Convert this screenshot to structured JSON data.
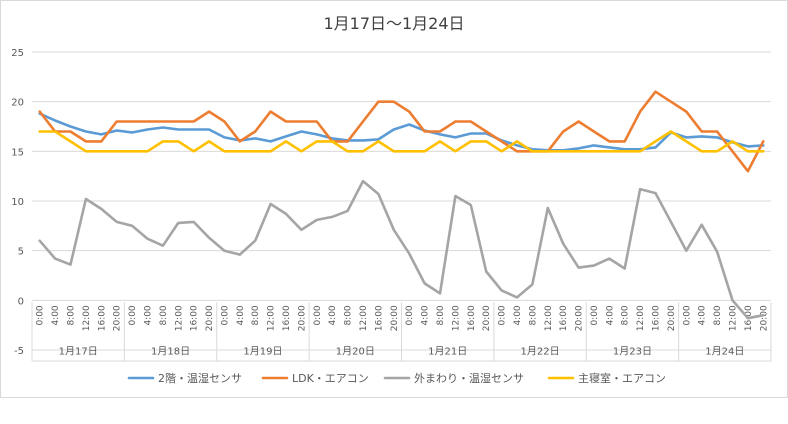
{
  "chart_data": {
    "type": "line",
    "title": "1月17日～1月24日",
    "xlabel": "",
    "ylabel": "",
    "ylim": [
      -5,
      25
    ],
    "yticks": [
      -5,
      0,
      5,
      10,
      15,
      20,
      25
    ],
    "grid": true,
    "legend": "bottom",
    "x_time_labels": [
      "0:00",
      "4:00",
      "8:00",
      "12:00",
      "16:00",
      "20:00"
    ],
    "days": [
      "1月17日",
      "1月18日",
      "1月19日",
      "1月20日",
      "1月21日",
      "1月22日",
      "1月23日",
      "1月24日"
    ],
    "series": [
      {
        "name": "2階・温湿センサ",
        "color": "#5b9bd5",
        "values": [
          18.8,
          18.1,
          17.5,
          17.0,
          16.7,
          17.1,
          16.9,
          17.2,
          17.4,
          17.2,
          17.2,
          17.2,
          16.4,
          16.1,
          16.3,
          16.0,
          16.5,
          17.0,
          16.7,
          16.3,
          16.1,
          16.1,
          16.2,
          17.2,
          17.7,
          17.1,
          16.7,
          16.4,
          16.8,
          16.8,
          16.1,
          15.6,
          15.2,
          15.1,
          15.1,
          15.3,
          15.6,
          15.4,
          15.2,
          15.2,
          15.4,
          16.9,
          16.4,
          16.5,
          16.4,
          15.9,
          15.5,
          15.6
        ]
      },
      {
        "name": "LDK・エアコン",
        "color": "#ed7d31",
        "values": [
          19.0,
          17.0,
          17.0,
          16.0,
          16.0,
          18.0,
          18.0,
          18.0,
          18.0,
          18.0,
          18.0,
          19.0,
          18.0,
          16.0,
          17.0,
          19.0,
          18.0,
          18.0,
          18.0,
          16.0,
          16.0,
          18.0,
          20.0,
          20.0,
          19.0,
          17.0,
          17.0,
          18.0,
          18.0,
          17.0,
          16.0,
          15.0,
          15.0,
          15.0,
          17.0,
          18.0,
          17.0,
          16.0,
          16.0,
          19.0,
          21.0,
          20.0,
          19.0,
          17.0,
          17.0,
          15.0,
          13.0,
          16.0
        ]
      },
      {
        "name": "外まわり・温湿センサ",
        "color": "#a5a5a5",
        "values": [
          6.0,
          4.2,
          3.6,
          10.2,
          9.2,
          7.9,
          7.5,
          6.2,
          5.5,
          7.8,
          7.9,
          6.3,
          5.0,
          4.6,
          6.0,
          9.7,
          8.7,
          7.1,
          8.1,
          8.4,
          9.0,
          12.0,
          10.7,
          7.1,
          4.7,
          1.7,
          0.7,
          10.5,
          9.6,
          2.9,
          1.0,
          0.3,
          1.6,
          9.3,
          5.7,
          3.3,
          3.5,
          4.2,
          3.2,
          11.2,
          10.8,
          7.9,
          5.0,
          7.6,
          4.9,
          0.0,
          -1.8,
          -1.5
        ]
      },
      {
        "name": "主寝室・エアコン",
        "color": "#ffc000",
        "values": [
          17.0,
          17.0,
          16.0,
          15.0,
          15.0,
          15.0,
          15.0,
          15.0,
          16.0,
          16.0,
          15.0,
          16.0,
          15.0,
          15.0,
          15.0,
          15.0,
          16.0,
          15.0,
          16.0,
          16.0,
          15.0,
          15.0,
          16.0,
          15.0,
          15.0,
          15.0,
          16.0,
          15.0,
          16.0,
          16.0,
          15.0,
          16.0,
          15.0,
          15.0,
          15.0,
          15.0,
          15.0,
          15.0,
          15.0,
          15.0,
          16.0,
          17.0,
          16.0,
          15.0,
          15.0,
          16.0,
          15.0,
          15.0
        ]
      }
    ]
  }
}
